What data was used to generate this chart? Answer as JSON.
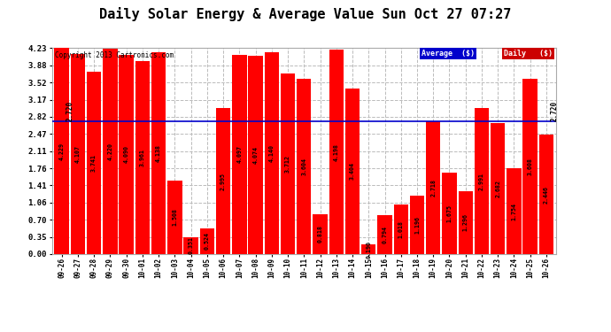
{
  "title": "Daily Solar Energy & Average Value Sun Oct 27 07:27",
  "copyright": "Copyright 2013 Cartronics.com",
  "categories": [
    "09-26",
    "09-27",
    "09-28",
    "09-29",
    "09-30",
    "10-01",
    "10-02",
    "10-03",
    "10-04",
    "10-05",
    "10-06",
    "10-07",
    "10-08",
    "10-09",
    "10-10",
    "10-11",
    "10-12",
    "10-13",
    "10-14",
    "10-15",
    "10-16",
    "10-17",
    "10-18",
    "10-19",
    "10-20",
    "10-21",
    "10-22",
    "10-23",
    "10-24",
    "10-25",
    "10-26"
  ],
  "values": [
    4.229,
    4.107,
    3.741,
    4.22,
    4.09,
    3.961,
    4.138,
    1.508,
    0.351,
    0.524,
    2.995,
    4.097,
    4.074,
    4.14,
    3.712,
    3.604,
    0.818,
    4.198,
    3.404,
    0.19,
    0.794,
    1.018,
    1.196,
    2.718,
    1.675,
    1.296,
    2.991,
    2.682,
    1.754,
    3.608,
    2.446
  ],
  "average": 2.72,
  "bar_color": "#ff0000",
  "average_line_color": "#0000cc",
  "ylim": [
    0.0,
    4.23
  ],
  "yticks": [
    0.0,
    0.35,
    0.7,
    1.06,
    1.41,
    1.76,
    2.11,
    2.47,
    2.82,
    3.17,
    3.52,
    3.88,
    4.23
  ],
  "background_color": "#ffffff",
  "plot_bg_color": "#ffffff",
  "grid_color": "#bbbbbb",
  "title_fontsize": 11,
  "legend_avg_color": "#0000cc",
  "legend_daily_color": "#cc0000",
  "figsize": [
    6.9,
    3.75
  ],
  "dpi": 100
}
